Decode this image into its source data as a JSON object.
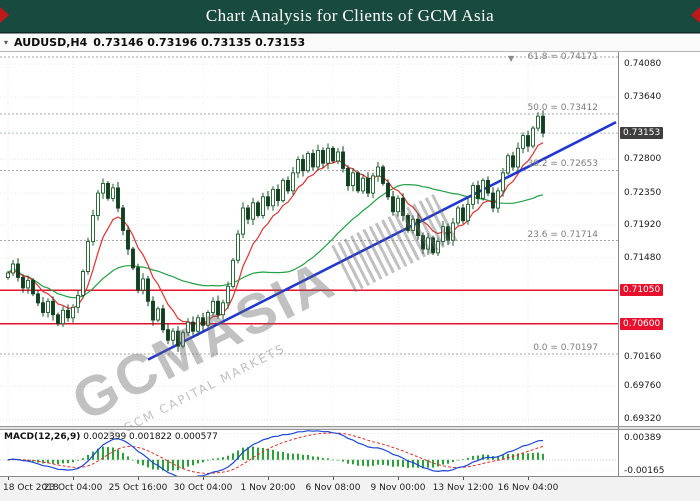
{
  "title_bar": {
    "text": "Chart Analysis for Clients of GCM Asia"
  },
  "chart_header": {
    "symbol": "AUDUSD,H4",
    "quote": "0.73146 0.73196 0.73135 0.73153"
  },
  "watermark": {
    "text": "GCMASIA",
    "subtext": "© GCM CAPITAL MARKETS"
  },
  "price_axis": {
    "labels": [
      {
        "text": "0.74080",
        "price": 0.7408
      },
      {
        "text": "0.73640",
        "price": 0.7364
      },
      {
        "text": "0.72800",
        "price": 0.728
      },
      {
        "text": "0.72350",
        "price": 0.7235
      },
      {
        "text": "0.71920",
        "price": 0.7192
      },
      {
        "text": "0.71480",
        "price": 0.7148
      },
      {
        "text": "0.70160",
        "price": 0.7016
      },
      {
        "text": "0.69760",
        "price": 0.6976
      },
      {
        "text": "0.69320",
        "price": 0.6932
      }
    ],
    "current": {
      "text": "0.73153",
      "price": 0.73153
    },
    "red_levels": [
      {
        "text": "0.71050",
        "price": 0.7105
      },
      {
        "text": "0.70600",
        "price": 0.706
      }
    ]
  },
  "fib": {
    "levels": [
      {
        "text": "61.8 = 0.74171",
        "price": 0.74171
      },
      {
        "text": "50.0 = 0.73412",
        "price": 0.73412
      },
      {
        "text": "38.2 = 0.72653",
        "price": 0.72653
      },
      {
        "text": "23.6 = 0.71714",
        "price": 0.71714
      },
      {
        "text": "0.0 = 0.70197",
        "price": 0.70197
      }
    ]
  },
  "time_axis": {
    "labels": [
      {
        "text": "18 Oct 2018",
        "index": 0
      },
      {
        "text": "23 Oct 04:00",
        "index": 13
      },
      {
        "text": "25 Oct 16:00",
        "index": 26
      },
      {
        "text": "30 Oct 04:00",
        "index": 39
      },
      {
        "text": "1 Nov 20:00",
        "index": 52
      },
      {
        "text": "6 Nov 08:00",
        "index": 65
      },
      {
        "text": "9 Nov 00:00",
        "index": 78
      },
      {
        "text": "13 Nov 12:00",
        "index": 91
      },
      {
        "text": "16 Nov 04:00",
        "index": 104
      }
    ]
  },
  "macd_pane": {
    "title": "MACD(12,26,9)",
    "values": "0.002399 0.001822 0.000577",
    "axis_labels": [
      {
        "text": "0.00389",
        "value": 0.00389
      },
      {
        "text": "-0.00165",
        "value": -0.00165
      }
    ],
    "ylim": [
      -0.0024,
      0.0044
    ]
  },
  "colors": {
    "title_bg": "#184a3e",
    "red": "#e8112d",
    "trend_blue": "#2136cf",
    "ma_red": "#e03131",
    "ma_green": "#22a045",
    "candle_up": "#1a5c2a",
    "candle_down": "#123f20",
    "macd_line": "#1c46d6",
    "macd_signal": "#e0302e",
    "macd_hist": "#2ba13a",
    "price_badge_bg": "#3f3f3f"
  },
  "chart_data": {
    "type": "candlestick",
    "symbol": "AUDUSD",
    "timeframe": "H4",
    "ylim": [
      0.6923,
      0.7424
    ],
    "ma_fast_period": 8,
    "ma_slow_period": 34,
    "macd_params": [
      12,
      26,
      9
    ],
    "trendline": {
      "from_index": 28,
      "from_price": 0.7012,
      "to_x": 616,
      "to_price": 0.733
    },
    "closes": [
      0.7128,
      0.714,
      0.7122,
      0.7108,
      0.7118,
      0.71,
      0.7088,
      0.7075,
      0.709,
      0.7072,
      0.706,
      0.7078,
      0.7068,
      0.7082,
      0.7098,
      0.713,
      0.717,
      0.7205,
      0.7235,
      0.7248,
      0.7228,
      0.7242,
      0.7215,
      0.7185,
      0.716,
      0.7135,
      0.7105,
      0.712,
      0.709,
      0.7065,
      0.708,
      0.7052,
      0.7038,
      0.705,
      0.703,
      0.7048,
      0.7062,
      0.705,
      0.7068,
      0.7058,
      0.7075,
      0.709,
      0.7072,
      0.7088,
      0.711,
      0.7145,
      0.718,
      0.7215,
      0.72,
      0.7222,
      0.7205,
      0.723,
      0.7218,
      0.724,
      0.7225,
      0.7252,
      0.7238,
      0.7262,
      0.728,
      0.7265,
      0.7288,
      0.727,
      0.7292,
      0.7275,
      0.7295,
      0.7278,
      0.729,
      0.7268,
      0.7245,
      0.7262,
      0.7238,
      0.7255,
      0.7235,
      0.7258,
      0.727,
      0.7248,
      0.723,
      0.721,
      0.7228,
      0.7205,
      0.7185,
      0.72,
      0.7178,
      0.716,
      0.7175,
      0.7155,
      0.717,
      0.719,
      0.7172,
      0.7195,
      0.7215,
      0.7198,
      0.722,
      0.7245,
      0.7228,
      0.7252,
      0.7235,
      0.7215,
      0.7238,
      0.7262,
      0.7285,
      0.727,
      0.7295,
      0.7312,
      0.7298,
      0.7322,
      0.7338,
      0.73153
    ]
  }
}
